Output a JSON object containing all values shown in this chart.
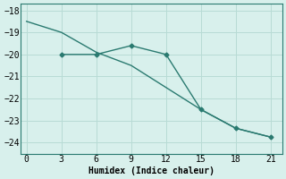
{
  "line1_x": [
    0,
    3,
    6,
    9,
    12,
    15,
    18,
    21
  ],
  "line1_y": [
    -18.5,
    -19.0,
    -19.9,
    -20.5,
    -21.5,
    -22.5,
    -23.35,
    -23.75
  ],
  "line2_x": [
    3,
    6,
    9,
    12,
    15,
    18,
    21
  ],
  "line2_y": [
    -20.0,
    -20.0,
    -19.6,
    -20.0,
    -22.5,
    -23.35,
    -23.75
  ],
  "line_color": "#2a7a70",
  "bg_color": "#d8f0ec",
  "grid_color": "#b8dbd5",
  "xlabel": "Humidex (Indice chaleur)",
  "xlim": [
    -0.5,
    22
  ],
  "ylim": [
    -24.5,
    -17.7
  ],
  "xticks": [
    0,
    3,
    6,
    9,
    12,
    15,
    18,
    21
  ],
  "yticks": [
    -24,
    -23,
    -22,
    -21,
    -20,
    -19,
    -18
  ],
  "marker": "D",
  "marker_size": 2.5,
  "font_family": "monospace",
  "font_size": 7,
  "line_width": 1.0
}
